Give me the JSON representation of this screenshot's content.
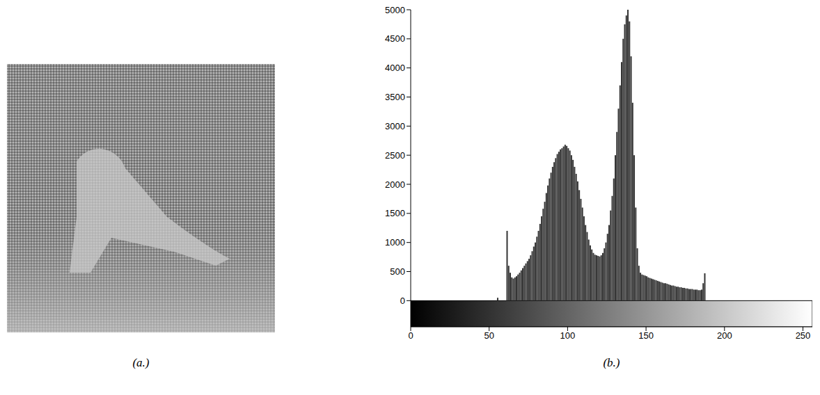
{
  "image": {
    "caption": "(a.)"
  },
  "chart_data": {
    "type": "histogram",
    "title": "(b.)",
    "color": "#333333",
    "bins": [
      0,
      1,
      2,
      3,
      4,
      5,
      6,
      7,
      8,
      9,
      10,
      11,
      12,
      13,
      14,
      15,
      16,
      17,
      18,
      19,
      20,
      21,
      22,
      23,
      24,
      25,
      26,
      27,
      28,
      29,
      30,
      31,
      32,
      33,
      34,
      35,
      36,
      37,
      38,
      39,
      40,
      41,
      42,
      43,
      44,
      45,
      46,
      47,
      48,
      49,
      50,
      51,
      52,
      53,
      54,
      55,
      56,
      57,
      58,
      59,
      60,
      61,
      62,
      63,
      64,
      65,
      66,
      67,
      68,
      69,
      70,
      71,
      72,
      73,
      74,
      75,
      76,
      77,
      78,
      79,
      80,
      81,
      82,
      83,
      84,
      85,
      86,
      87,
      88,
      89,
      90,
      91,
      92,
      93,
      94,
      95,
      96,
      97,
      98,
      99,
      100,
      101,
      102,
      103,
      104,
      105,
      106,
      107,
      108,
      109,
      110,
      111,
      112,
      113,
      114,
      115,
      116,
      117,
      118,
      119,
      120,
      121,
      122,
      123,
      124,
      125,
      126,
      127,
      128,
      129,
      130,
      131,
      132,
      133,
      134,
      135,
      136,
      137,
      138,
      139,
      140,
      141,
      142,
      143,
      144,
      145,
      146,
      147,
      148,
      149,
      150,
      151,
      152,
      153,
      154,
      155,
      156,
      157,
      158,
      159,
      160,
      161,
      162,
      163,
      164,
      165,
      166,
      167,
      168,
      169,
      170,
      171,
      172,
      173,
      174,
      175,
      176,
      177,
      178,
      179,
      180,
      181,
      182,
      183,
      184,
      185,
      186,
      187,
      188,
      189,
      190,
      191,
      192,
      193,
      194,
      195,
      196,
      197,
      198,
      199,
      200,
      201,
      202,
      203,
      204,
      205,
      206,
      207,
      208,
      209,
      210,
      211,
      212,
      213,
      214,
      215,
      216,
      217,
      218,
      219,
      220,
      221,
      222,
      223,
      224,
      225,
      226,
      227,
      228,
      229,
      230,
      231,
      232,
      233,
      234,
      235,
      236,
      237,
      238,
      239,
      240,
      241,
      242,
      243,
      244,
      245,
      246,
      247,
      248,
      249,
      250,
      251,
      252,
      253,
      254,
      255,
      256
    ],
    "counts": [
      0,
      0,
      0,
      0,
      0,
      0,
      0,
      0,
      0,
      0,
      0,
      0,
      0,
      0,
      0,
      0,
      0,
      0,
      0,
      0,
      0,
      0,
      0,
      0,
      0,
      0,
      0,
      0,
      0,
      0,
      0,
      0,
      0,
      0,
      0,
      0,
      0,
      0,
      0,
      0,
      0,
      0,
      0,
      0,
      0,
      0,
      0,
      0,
      0,
      0,
      0,
      0,
      0,
      0,
      0,
      50,
      0,
      0,
      0,
      0,
      0,
      1200,
      600,
      480,
      400,
      380,
      400,
      420,
      450,
      480,
      520,
      560,
      600,
      640,
      680,
      720,
      780,
      850,
      930,
      1000,
      1100,
      1200,
      1320,
      1450,
      1580,
      1700,
      1850,
      1980,
      2100,
      2200,
      2300,
      2380,
      2450,
      2520,
      2560,
      2600,
      2620,
      2650,
      2680,
      2660,
      2620,
      2580,
      2500,
      2420,
      2300,
      2180,
      2050,
      1900,
      1750,
      1600,
      1450,
      1300,
      1180,
      1050,
      950,
      880,
      820,
      790,
      780,
      770,
      760,
      780,
      820,
      900,
      1000,
      1150,
      1300,
      1550,
      1800,
      2100,
      2500,
      2900,
      3300,
      3700,
      4100,
      4500,
      4750,
      4900,
      5000,
      4800,
      4200,
      3400,
      2500,
      1600,
      900,
      600,
      480,
      450,
      440,
      430,
      420,
      400,
      390,
      380,
      370,
      360,
      350,
      340,
      330,
      320,
      310,
      300,
      300,
      290,
      280,
      270,
      260,
      260,
      250,
      240,
      240,
      230,
      230,
      220,
      220,
      210,
      210,
      200,
      200,
      200,
      190,
      190,
      190,
      180,
      180,
      190,
      300,
      470,
      0,
      0,
      0,
      0,
      0,
      0,
      0,
      0,
      0,
      0,
      0,
      0,
      0,
      0,
      0,
      0,
      0,
      0,
      0,
      0,
      0,
      0,
      0,
      0,
      0,
      0,
      0,
      0,
      0,
      0,
      0,
      0,
      0,
      0,
      0,
      0,
      0,
      0,
      0,
      0,
      0,
      0,
      0,
      0,
      0,
      0,
      0,
      0,
      0,
      0,
      0,
      0,
      0,
      0,
      0,
      0,
      0,
      0,
      0,
      0,
      0,
      0,
      0,
      0,
      0,
      0,
      0,
      0
    ],
    "xlim": [
      0,
      256
    ],
    "xticks": [
      0,
      50,
      100,
      150,
      200,
      250
    ],
    "ylim": [
      -450,
      5000
    ],
    "yticks": [
      0,
      500,
      1000,
      1500,
      2000,
      2500,
      3000,
      3500,
      4000,
      4500,
      5000
    ],
    "grid": false
  }
}
